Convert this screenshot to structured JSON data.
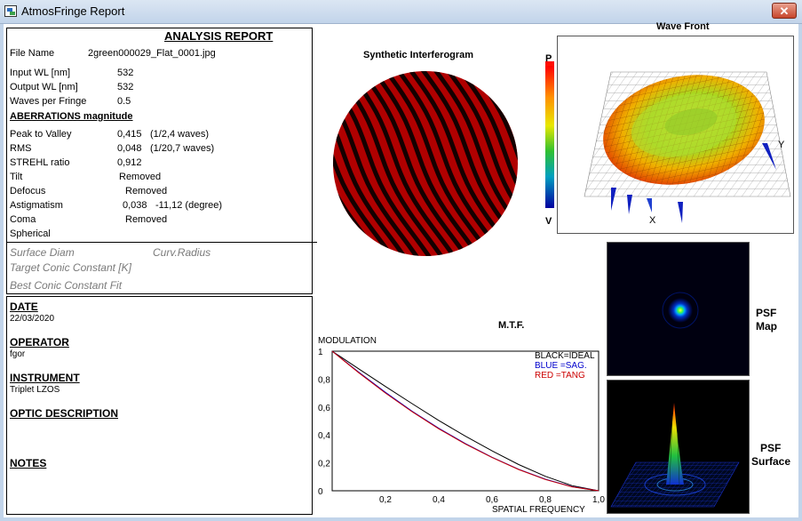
{
  "window": {
    "title": "AtmosFringe  Report",
    "close_label": "✕"
  },
  "report": {
    "title": "ANALYSIS  REPORT",
    "file_name_label": "File Name",
    "file_name": "2green000029_Flat_0001.jpg",
    "input_wl_label": "Input  WL [nm]",
    "input_wl": "532",
    "output_wl_label": "Output WL [nm]",
    "output_wl": "532",
    "waves_label": "Waves per Fringe",
    "waves": "0.5",
    "aberrations_header": "ABERRATIONS magnitude",
    "ptv_label": "Peak to Valley",
    "ptv_value": "0,415",
    "ptv_note": "(1/2,4 waves)",
    "rms_label": "RMS",
    "rms_value": "0,048",
    "rms_note": "(1/20,7 waves)",
    "strehl_label": "STREHL ratio",
    "strehl_value": "0,912",
    "tilt_label": "Tilt",
    "tilt_value": "Removed",
    "defocus_label": "Defocus",
    "defocus_value": "Removed",
    "astig_label": "Astigmatism",
    "astig_value": "0,038",
    "astig_angle": "-11,12  (degree)",
    "coma_label": "Coma",
    "coma_value": "Removed",
    "spherical_label": "Spherical",
    "surface_diam_label": "Surface Diam",
    "curv_radius_label": "Curv.Radius",
    "target_conic_label": "Target Conic Constant [K]",
    "best_conic_label": "Best Conic Constant Fit"
  },
  "info": {
    "date_header": "DATE",
    "date": "22/03/2020",
    "operator_header": "OPERATOR",
    "operator": "fgor",
    "instrument_header": "INSTRUMENT",
    "instrument": "Triplet LZOS",
    "optic_header": "OPTIC DESCRIPTION",
    "notes_header": "NOTES"
  },
  "panels": {
    "interferogram_title": "Synthetic Interferogram",
    "wavefront_title": "Wave Front",
    "colorbar_top": "P",
    "colorbar_bottom": "V",
    "axis_x": "X",
    "axis_y": "Y",
    "psf_map_label_1": "PSF",
    "psf_map_label_2": "Map",
    "psf_surface_label_1": "PSF",
    "psf_surface_label_2": "Surface"
  },
  "chart_data": {
    "type": "line",
    "title": "M.T.F.",
    "xlabel": "SPATIAL FREQUENCY",
    "ylabel": "MODULATION",
    "xlim": [
      0,
      1
    ],
    "ylim": [
      0,
      1
    ],
    "xticks": [
      "0,2",
      "0,4",
      "0,6",
      "0,8",
      "1,0"
    ],
    "yticks": [
      "0",
      "0,2",
      "0,4",
      "0,6",
      "0,8",
      "1"
    ],
    "legend": [
      "BLACK=IDEAL",
      "BLUE  =SAG.",
      "RED   =TANG"
    ],
    "legend_position": "top-right",
    "x": [
      0,
      0.1,
      0.2,
      0.3,
      0.4,
      0.5,
      0.6,
      0.7,
      0.8,
      0.9,
      1.0
    ],
    "series": [
      {
        "name": "IDEAL",
        "color": "#000000",
        "values": [
          1.0,
          0.873,
          0.747,
          0.624,
          0.504,
          0.391,
          0.286,
          0.188,
          0.104,
          0.037,
          0.0
        ]
      },
      {
        "name": "SAG.",
        "color": "#0000cc",
        "values": [
          1.0,
          0.85,
          0.705,
          0.57,
          0.448,
          0.338,
          0.24,
          0.154,
          0.083,
          0.029,
          0.0
        ]
      },
      {
        "name": "TANG",
        "color": "#cc0000",
        "values": [
          1.0,
          0.845,
          0.7,
          0.566,
          0.444,
          0.335,
          0.238,
          0.152,
          0.081,
          0.028,
          0.0
        ]
      }
    ]
  }
}
